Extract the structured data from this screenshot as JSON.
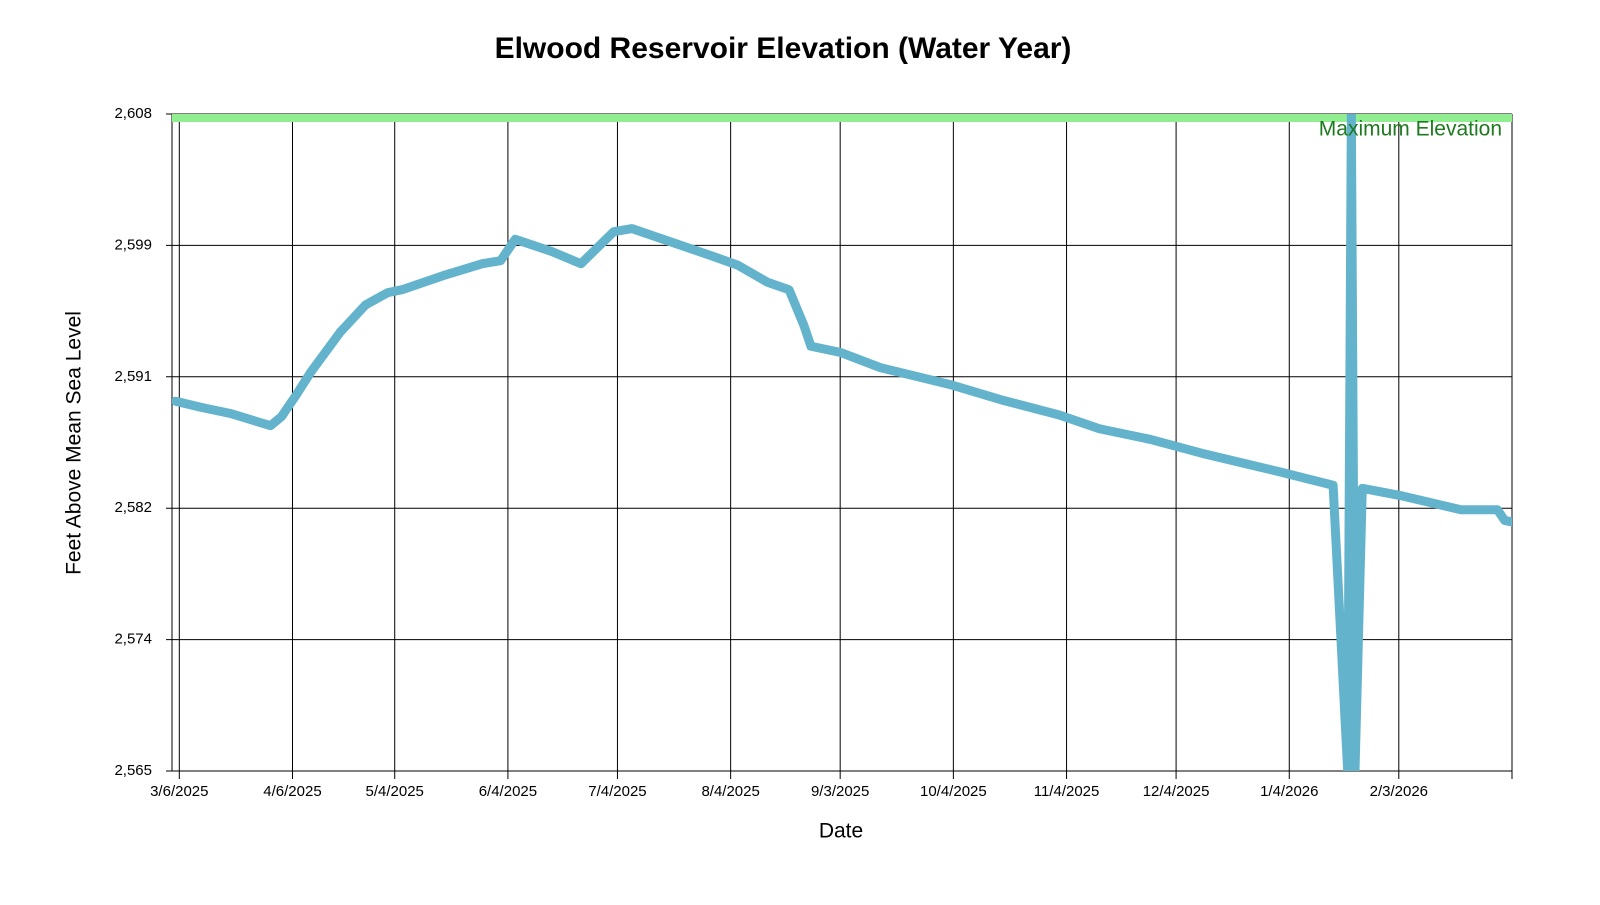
{
  "chart_data": {
    "type": "line",
    "title": "Elwood Reservoir Elevation (Water Year)",
    "x_label": "Date",
    "y_label": "Feet Above Mean Sea Level",
    "x": [
      "2025-03-05",
      "2025-03-12",
      "2025-03-20",
      "2025-03-31",
      "2025-04-03",
      "2025-04-07",
      "2025-04-11",
      "2025-04-19",
      "2025-04-26",
      "2025-05-02",
      "2025-05-06",
      "2025-05-17",
      "2025-05-28",
      "2025-06-02",
      "2025-06-06",
      "2025-06-16",
      "2025-06-24",
      "2025-07-03",
      "2025-07-08",
      "2025-07-19",
      "2025-07-30",
      "2025-08-06",
      "2025-08-14",
      "2025-08-20",
      "2025-08-24",
      "2025-08-26",
      "2025-09-03",
      "2025-09-14",
      "2025-10-03",
      "2025-10-17",
      "2025-11-02",
      "2025-11-13",
      "2025-11-27",
      "2025-12-11",
      "2026-01-01",
      "2026-01-16",
      "2026-01-20",
      "2026-01-21",
      "2026-01-22",
      "2026-01-24",
      "2026-02-04",
      "2026-02-20",
      "2026-03-02",
      "2026-03-04",
      "2026-03-06"
    ],
    "series": [
      {
        "name": "Elevation",
        "color": "#63b3cc",
        "values": [
          2589.2,
          2588.8,
          2588.4,
          2587.6,
          2588.2,
          2589.6,
          2591.1,
          2593.7,
          2595.5,
          2596.3,
          2596.5,
          2597.4,
          2598.2,
          2598.4,
          2599.8,
          2599.0,
          2598.2,
          2600.3,
          2600.5,
          2599.6,
          2598.7,
          2598.1,
          2597.0,
          2596.5,
          2594.2,
          2592.8,
          2592.4,
          2591.4,
          2590.3,
          2589.3,
          2588.3,
          2587.4,
          2586.7,
          2585.8,
          2584.6,
          2583.7,
          2565,
          2608,
          2565,
          2583.5,
          2583.0,
          2582.1,
          2582.1,
          2581.4,
          2581.3
        ]
      }
    ],
    "xlim": [
      "2025-03-04",
      "2026-03-06"
    ],
    "xticks": [
      {
        "value": "2025-03-06",
        "label": "3/6/2025"
      },
      {
        "value": "2025-04-06",
        "label": "4/6/2025"
      },
      {
        "value": "2025-05-04",
        "label": "5/4/2025"
      },
      {
        "value": "2025-06-04",
        "label": "6/4/2025"
      },
      {
        "value": "2025-07-04",
        "label": "7/4/2025"
      },
      {
        "value": "2025-08-04",
        "label": "8/4/2025"
      },
      {
        "value": "2025-09-03",
        "label": "9/3/2025"
      },
      {
        "value": "2025-10-04",
        "label": "10/4/2025"
      },
      {
        "value": "2025-11-04",
        "label": "11/4/2025"
      },
      {
        "value": "2025-12-04",
        "label": "12/4/2025"
      },
      {
        "value": "2026-01-04",
        "label": "1/4/2026"
      },
      {
        "value": "2026-02-03",
        "label": "2/3/2026"
      }
    ],
    "ylim": [
      2565,
      2608
    ],
    "yticks": [
      {
        "value": 2565,
        "label": "2,565"
      },
      {
        "value": 2573.6,
        "label": "2,574"
      },
      {
        "value": 2582.2,
        "label": "2,582"
      },
      {
        "value": 2590.8,
        "label": "2,591"
      },
      {
        "value": 2599.4,
        "label": "2,599"
      },
      {
        "value": 2608,
        "label": "2,608"
      }
    ],
    "grid": true,
    "reference_line": {
      "value": 2608,
      "label": "Maximum Elevation",
      "color": "#90ee90",
      "text_color": "#1e7a1e"
    }
  }
}
